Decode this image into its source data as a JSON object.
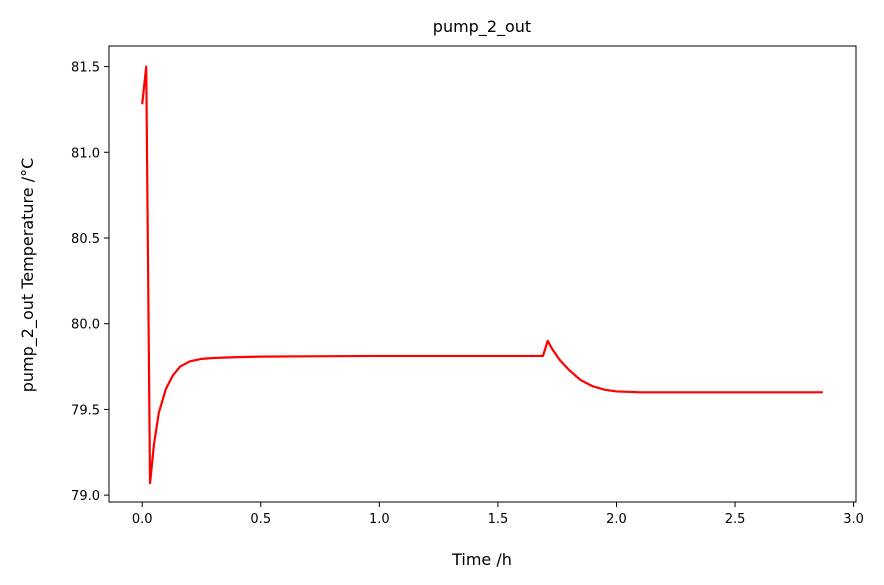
{
  "chart_data": {
    "type": "line",
    "title": "pump_2_out",
    "xlabel": "Time /h",
    "ylabel": "pump_2_out Temperature /°C",
    "xlim": [
      -0.14,
      3.01
    ],
    "ylim": [
      78.96,
      81.62
    ],
    "xticks": [
      0.0,
      0.5,
      1.0,
      1.5,
      2.0,
      2.5,
      3.0
    ],
    "xtick_labels": [
      "0.0",
      "0.5",
      "1.0",
      "1.5",
      "2.0",
      "2.5",
      "3.0"
    ],
    "yticks": [
      79.0,
      79.5,
      80.0,
      80.5,
      81.0,
      81.5
    ],
    "ytick_labels": [
      "79.0",
      "79.5",
      "80.0",
      "80.5",
      "81.0",
      "81.5"
    ],
    "grid": false,
    "series": [
      {
        "color": "#ff0000",
        "x": [
          0.0,
          0.017,
          0.033,
          0.05,
          0.07,
          0.1,
          0.13,
          0.16,
          0.2,
          0.25,
          0.3,
          0.4,
          0.5,
          0.7,
          1.0,
          1.3,
          1.5,
          1.69,
          1.71,
          1.73,
          1.76,
          1.8,
          1.85,
          1.9,
          1.95,
          2.0,
          2.1,
          2.3,
          2.5,
          2.87
        ],
        "y": [
          81.28,
          81.5,
          79.07,
          79.3,
          79.48,
          79.62,
          79.7,
          79.75,
          79.78,
          79.795,
          79.8,
          79.805,
          79.808,
          79.81,
          79.812,
          79.812,
          79.812,
          79.812,
          79.9,
          79.85,
          79.79,
          79.73,
          79.67,
          79.635,
          79.615,
          79.605,
          79.6,
          79.6,
          79.6,
          79.6
        ]
      }
    ]
  }
}
